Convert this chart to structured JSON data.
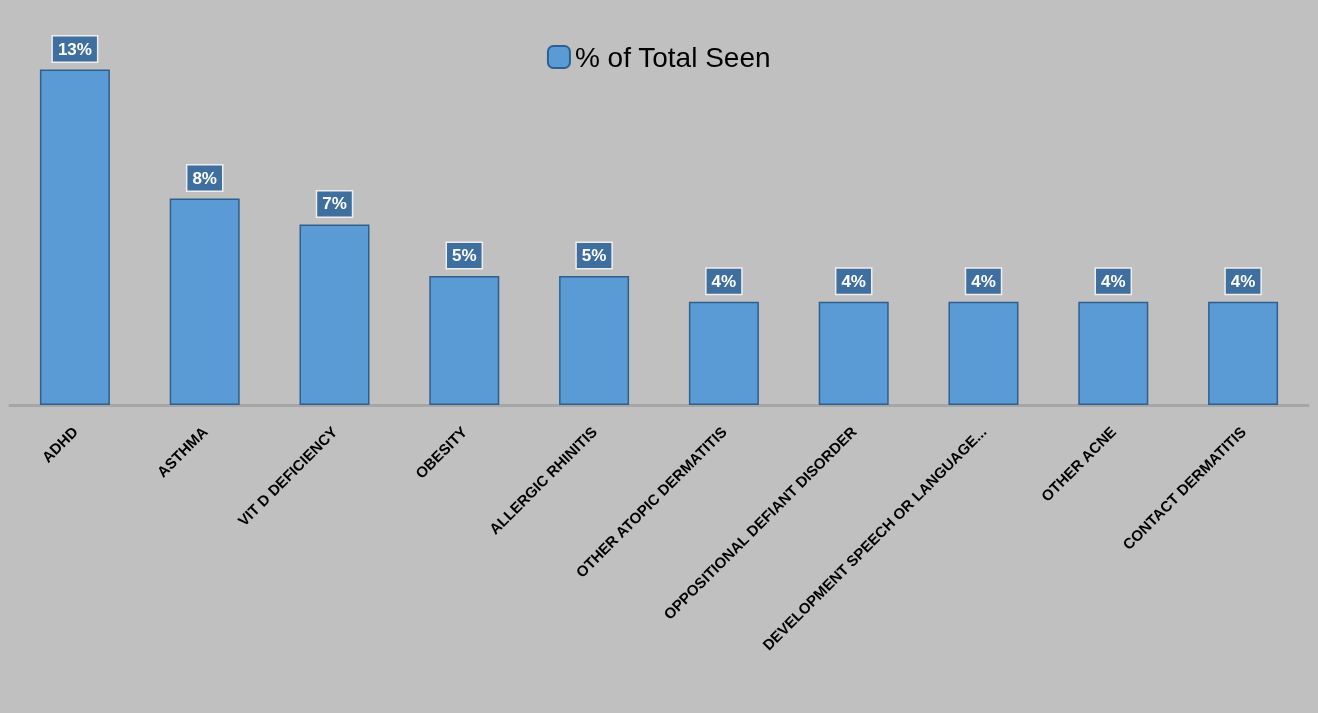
{
  "chart_data": {
    "type": "bar",
    "categories": [
      "ADHD",
      "ASTHMA",
      "VIT D DEFICIENCY",
      "OBESITY",
      "ALLERGIC RHINITIS",
      "OTHER ATOPIC DERMATITIS",
      "OPPOSITIONAL DEFIANT DISORDER",
      "DEVELOPMENT SPEECH OR LANGUAGE...",
      "OTHER ACNE",
      "CONTACT DERMATITIS"
    ],
    "series": [
      {
        "name": "% of Total Seen",
        "color": "#5b9bd5",
        "values": [
          13,
          8,
          7,
          5,
          5,
          4,
          4,
          4,
          4,
          4
        ],
        "value_labels": [
          "13%",
          "8%",
          "7%",
          "5%",
          "5%",
          "4%",
          "4%",
          "4%",
          "4%",
          "4%"
        ]
      }
    ],
    "legend": "top",
    "grid": false
  }
}
